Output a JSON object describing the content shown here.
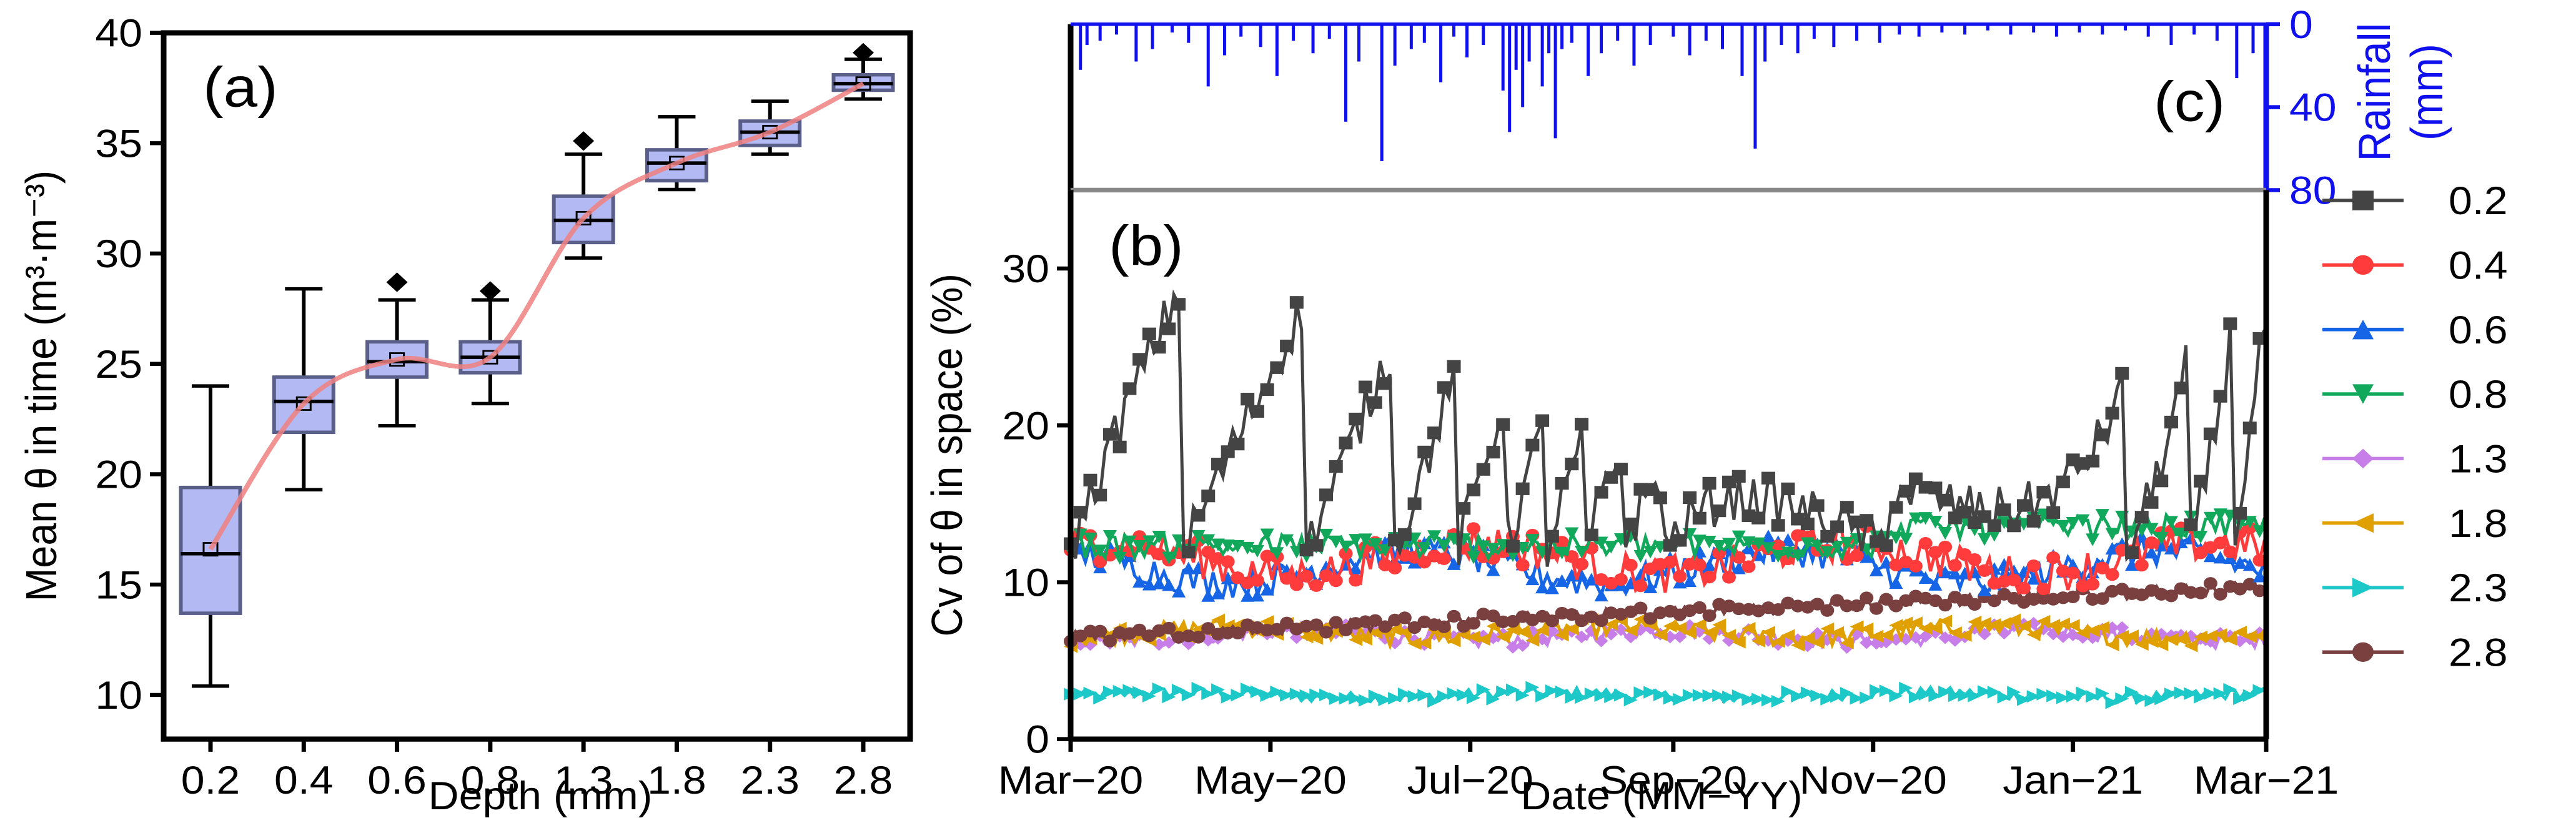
{
  "chart_data": [
    {
      "id": "a",
      "type": "box",
      "panel_label": "(a)",
      "xlabel": "Depth (mm)",
      "ylabel": "Mean θ in time (m³·m⁻³)",
      "categories": [
        "0.2",
        "0.4",
        "0.6",
        "0.8",
        "1.3",
        "1.8",
        "2.3",
        "2.8"
      ],
      "ylim": [
        8,
        40
      ],
      "yticks": [
        10,
        15,
        20,
        25,
        30,
        35,
        40
      ],
      "boxes": [
        {
          "min": 10.4,
          "q1": 13.7,
          "median": 16.4,
          "q3": 19.4,
          "max": 24.0,
          "mean": 16.6,
          "outliers": []
        },
        {
          "min": 19.3,
          "q1": 21.9,
          "median": 23.3,
          "q3": 24.4,
          "max": 28.4,
          "mean": 23.2,
          "outliers": []
        },
        {
          "min": 22.2,
          "q1": 24.4,
          "median": 25.1,
          "q3": 26.0,
          "max": 27.9,
          "mean": 25.2,
          "outliers": [
            28.7
          ]
        },
        {
          "min": 23.2,
          "q1": 24.6,
          "median": 25.3,
          "q3": 26.0,
          "max": 27.9,
          "mean": 25.3,
          "outliers": [
            28.3
          ]
        },
        {
          "min": 29.8,
          "q1": 30.5,
          "median": 31.5,
          "q3": 32.6,
          "max": 34.5,
          "mean": 31.6,
          "outliers": [
            35.1
          ]
        },
        {
          "min": 32.9,
          "q1": 33.3,
          "median": 34.1,
          "q3": 34.7,
          "max": 36.2,
          "mean": 34.1,
          "outliers": []
        },
        {
          "min": 34.5,
          "q1": 34.9,
          "median": 35.5,
          "q3": 36.0,
          "max": 36.9,
          "mean": 35.5,
          "outliers": []
        },
        {
          "min": 37.0,
          "q1": 37.4,
          "median": 37.7,
          "q3": 38.1,
          "max": 38.8,
          "mean": 37.7,
          "outliers": [
            39.1
          ]
        }
      ],
      "trend_line_color": "#f08080",
      "box_fill": "#b3b9f2",
      "box_edge": "#5a5f8a"
    },
    {
      "id": "b",
      "type": "line",
      "panel_label": "(b)",
      "xlabel": "Date (MM−YY)",
      "ylabel": "Cv of θ in space (%)",
      "x_tick_labels": [
        "Mar−20",
        "May−20",
        "Jul−20",
        "Sep−20",
        "Nov−20",
        "Jan−21",
        "Mar−21"
      ],
      "x_range_days": [
        0,
        365
      ],
      "x_tick_days": [
        0,
        61,
        122,
        184,
        245,
        306,
        365
      ],
      "ylim": [
        0,
        35
      ],
      "yticks": [
        0,
        10,
        20,
        30
      ],
      "legend_position": "right-outside",
      "series": [
        {
          "name": "0.2",
          "color": "#444444",
          "marker": "square",
          "base": 12,
          "amplitude": 20,
          "noise": 1.5
        },
        {
          "name": "0.4",
          "color": "#ff3b3b",
          "marker": "circle",
          "base": 11.5,
          "amplitude": 2.5,
          "noise": 1.2
        },
        {
          "name": "0.6",
          "color": "#1565e6",
          "marker": "triangle-up",
          "base": 11,
          "amplitude": 2.5,
          "noise": 1.0
        },
        {
          "name": "0.8",
          "color": "#11a85b",
          "marker": "triangle-down",
          "base": 12.3,
          "amplitude": 1.5,
          "noise": 0.8
        },
        {
          "name": "1.3",
          "color": "#c77ee8",
          "marker": "diamond",
          "base": 6.6,
          "amplitude": 0.8,
          "noise": 0.5
        },
        {
          "name": "1.8",
          "color": "#e0a000",
          "marker": "triangle-left",
          "base": 6.8,
          "amplitude": 0.8,
          "noise": 0.6
        },
        {
          "name": "2.3",
          "color": "#1cc8c8",
          "marker": "triangle-right",
          "base": 2.8,
          "amplitude": 0.4,
          "noise": 0.35
        },
        {
          "name": "2.8",
          "color": "#7a4040",
          "marker": "circle",
          "base": 6.8,
          "amplitude": 0.6,
          "noise": 0.4
        }
      ]
    },
    {
      "id": "c",
      "type": "bar",
      "panel_label": "(c)",
      "ylabel_line1": "Rainfall",
      "ylabel_line2": "(mm)",
      "ylim": [
        0,
        80
      ],
      "yticks": [
        0,
        40,
        80
      ],
      "inverted": true,
      "color": "#1010ee",
      "events": [
        {
          "day": 3,
          "mm": 22
        },
        {
          "day": 5,
          "mm": 10
        },
        {
          "day": 9,
          "mm": 8
        },
        {
          "day": 14,
          "mm": 5
        },
        {
          "day": 20,
          "mm": 18
        },
        {
          "day": 25,
          "mm": 12
        },
        {
          "day": 31,
          "mm": 4
        },
        {
          "day": 36,
          "mm": 9
        },
        {
          "day": 42,
          "mm": 30
        },
        {
          "day": 47,
          "mm": 15
        },
        {
          "day": 52,
          "mm": 6
        },
        {
          "day": 58,
          "mm": 11
        },
        {
          "day": 63,
          "mm": 25
        },
        {
          "day": 68,
          "mm": 8
        },
        {
          "day": 74,
          "mm": 14
        },
        {
          "day": 79,
          "mm": 7
        },
        {
          "day": 84,
          "mm": 47
        },
        {
          "day": 88,
          "mm": 18
        },
        {
          "day": 95,
          "mm": 66
        },
        {
          "day": 99,
          "mm": 20
        },
        {
          "day": 104,
          "mm": 12
        },
        {
          "day": 108,
          "mm": 9
        },
        {
          "day": 113,
          "mm": 28
        },
        {
          "day": 117,
          "mm": 6
        },
        {
          "day": 121,
          "mm": 16
        },
        {
          "day": 126,
          "mm": 10
        },
        {
          "day": 132,
          "mm": 32
        },
        {
          "day": 134,
          "mm": 52
        },
        {
          "day": 136,
          "mm": 22
        },
        {
          "day": 138,
          "mm": 40
        },
        {
          "day": 140,
          "mm": 18
        },
        {
          "day": 144,
          "mm": 30
        },
        {
          "day": 146,
          "mm": 14
        },
        {
          "day": 148,
          "mm": 55
        },
        {
          "day": 150,
          "mm": 12
        },
        {
          "day": 153,
          "mm": 9
        },
        {
          "day": 158,
          "mm": 25
        },
        {
          "day": 162,
          "mm": 14
        },
        {
          "day": 167,
          "mm": 8
        },
        {
          "day": 172,
          "mm": 20
        },
        {
          "day": 177,
          "mm": 10
        },
        {
          "day": 184,
          "mm": 6
        },
        {
          "day": 189,
          "mm": 15
        },
        {
          "day": 194,
          "mm": 8
        },
        {
          "day": 199,
          "mm": 12
        },
        {
          "day": 205,
          "mm": 25
        },
        {
          "day": 209,
          "mm": 60
        },
        {
          "day": 212,
          "mm": 18
        },
        {
          "day": 217,
          "mm": 10
        },
        {
          "day": 222,
          "mm": 14
        },
        {
          "day": 227,
          "mm": 7
        },
        {
          "day": 233,
          "mm": 11
        },
        {
          "day": 240,
          "mm": 8
        },
        {
          "day": 247,
          "mm": 9
        },
        {
          "day": 253,
          "mm": 5
        },
        {
          "day": 259,
          "mm": 6
        },
        {
          "day": 266,
          "mm": 4
        },
        {
          "day": 273,
          "mm": 5
        },
        {
          "day": 280,
          "mm": 3
        },
        {
          "day": 287,
          "mm": 5
        },
        {
          "day": 294,
          "mm": 4
        },
        {
          "day": 301,
          "mm": 6
        },
        {
          "day": 308,
          "mm": 4
        },
        {
          "day": 315,
          "mm": 5
        },
        {
          "day": 322,
          "mm": 3
        },
        {
          "day": 329,
          "mm": 6
        },
        {
          "day": 336,
          "mm": 10
        },
        {
          "day": 343,
          "mm": 5
        },
        {
          "day": 350,
          "mm": 8
        },
        {
          "day": 356,
          "mm": 26
        },
        {
          "day": 361,
          "mm": 14
        }
      ]
    }
  ]
}
